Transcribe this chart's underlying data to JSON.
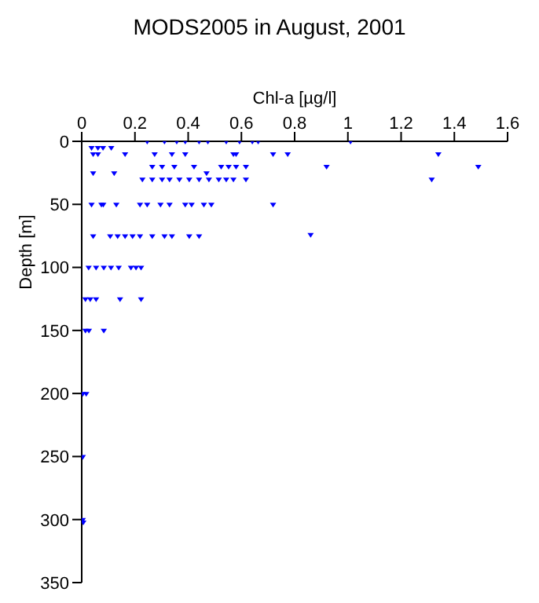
{
  "chart_data": {
    "type": "scatter",
    "title": "MODS2005 in August, 2001",
    "xlabel": "Chl-a [µg/l]",
    "ylabel": "Depth [m]",
    "x": [
      0.246,
      0.311,
      0.357,
      0.389,
      0.441,
      0.474,
      0.543,
      0.593,
      0.641,
      0.663,
      1.01,
      0.037,
      0.061,
      0.08,
      0.111,
      0.043,
      0.061,
      0.163,
      0.274,
      0.339,
      0.389,
      0.57,
      0.58,
      0.719,
      0.774,
      1.34,
      0.265,
      0.302,
      0.348,
      0.422,
      0.524,
      0.552,
      0.58,
      0.617,
      0.92,
      1.49,
      0.043,
      0.122,
      0.469,
      0.228,
      0.265,
      0.302,
      0.33,
      0.367,
      0.404,
      0.441,
      0.478,
      0.515,
      0.543,
      0.57,
      0.617,
      1.315,
      0.037,
      0.074,
      0.081,
      0.13,
      0.219,
      0.246,
      0.296,
      0.33,
      0.389,
      0.413,
      0.459,
      0.487,
      0.719,
      0.043,
      0.107,
      0.135,
      0.163,
      0.191,
      0.219,
      0.265,
      0.311,
      0.339,
      0.404,
      0.441,
      0.86,
      0.026,
      0.054,
      0.083,
      0.11,
      0.139,
      0.185,
      0.204,
      0.223,
      0.014,
      0.032,
      0.054,
      0.144,
      0.223,
      0.014,
      0.027,
      0.083,
      0.004,
      0.017,
      0.004,
      0.004,
      0.006
    ],
    "values": [
      0,
      0,
      0,
      0,
      0,
      0,
      0,
      0,
      0,
      0,
      0,
      5,
      5,
      5,
      5,
      10,
      10,
      10,
      10,
      10,
      10,
      10,
      10,
      10,
      10,
      10,
      20,
      20,
      20,
      20,
      20,
      20,
      20,
      20,
      20,
      20,
      25,
      25,
      25,
      30,
      30,
      30,
      30,
      30,
      30,
      30,
      30,
      30,
      30,
      30,
      30,
      30,
      50,
      50,
      50,
      50,
      50,
      50,
      50,
      50,
      50,
      50,
      50,
      50,
      50,
      75,
      75,
      75,
      75,
      75,
      75,
      75,
      75,
      75,
      75,
      75,
      74,
      100,
      100,
      100,
      100,
      100,
      100,
      100,
      100,
      125,
      125,
      125,
      125,
      125,
      150,
      150,
      150,
      200,
      200,
      250,
      300,
      302
    ],
    "color": "#0000ff",
    "marker": "triangle",
    "xlim": [
      0,
      1.6
    ],
    "xticks": [
      0,
      0.2,
      0.4,
      0.6,
      0.8,
      1,
      1.2,
      1.4,
      1.6
    ],
    "ylim": [
      350,
      0
    ],
    "yticks": [
      0,
      50,
      100,
      150,
      200,
      250,
      300,
      350
    ],
    "grid": false
  }
}
